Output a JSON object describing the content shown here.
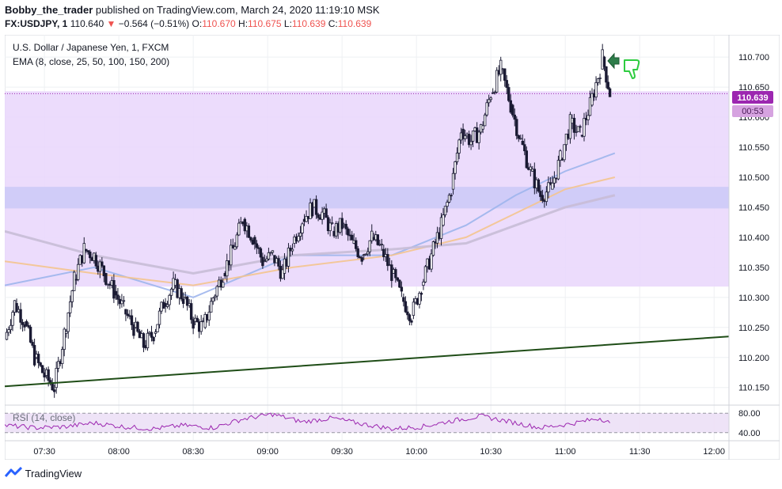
{
  "header": {
    "author": "Bobby_the_trader",
    "published_text": "published on TradingView.com, March 24, 2020 11:19:10 MSK",
    "symbol_line": "FX:USDJPY, 1",
    "last": "110.640",
    "change": "−0.564 (−0.51%)",
    "o_label": "O:",
    "o_value": "110.670",
    "h_label": "H:",
    "h_value": "110.675",
    "l_label": "L:",
    "l_value": "110.639",
    "c_label": "C:",
    "c_value": "110.639"
  },
  "legend": {
    "title": "U.S. Dollar / Japanese Yen, 1, FXCM",
    "ema": "EMA (8, close, 25, 50, 100, 150, 200)",
    "rsi": "RSI (14, close)"
  },
  "price_badge": {
    "price": "110.639",
    "countdown": "00:53",
    "color": "#9c27b0"
  },
  "footer": {
    "brand": "TradingView"
  },
  "colors": {
    "zone_fill": "#e9d6fb",
    "band_fill": "#c7c7f7",
    "candle": "#1a1a33",
    "ema_blue": "#9db5ec",
    "ema_orange": "#f4c48e",
    "ema_gray": "#c8bdd6",
    "trendline": "#1f4d17",
    "rsi_line": "#9c27b0",
    "arrow": "#2e7d4a",
    "thumb": "#2ecc40"
  },
  "chart_data": [
    {
      "type": "line",
      "name": "USDJPY 1m candles",
      "x_ticks": [
        "07:30",
        "08:00",
        "08:30",
        "09:00",
        "09:30",
        "10:00",
        "10:30",
        "11:00",
        "11:30",
        "12:00"
      ],
      "y_ticks": [
        "110.150",
        "110.200",
        "110.250",
        "110.300",
        "110.350",
        "110.400",
        "110.450",
        "110.500",
        "110.550",
        "110.600",
        "110.650",
        "110.700"
      ],
      "ylim": [
        110.122,
        110.737
      ],
      "xlim_minutes": [
        434,
        726
      ],
      "close_points": [
        [
          434,
          110.23
        ],
        [
          438,
          110.29
        ],
        [
          442,
          110.26
        ],
        [
          446,
          110.2
        ],
        [
          450,
          110.17
        ],
        [
          454,
          110.15
        ],
        [
          458,
          110.24
        ],
        [
          462,
          110.33
        ],
        [
          466,
          110.38
        ],
        [
          470,
          110.37
        ],
        [
          474,
          110.34
        ],
        [
          478,
          110.31
        ],
        [
          482,
          110.28
        ],
        [
          486,
          110.25
        ],
        [
          490,
          110.22
        ],
        [
          494,
          110.24
        ],
        [
          498,
          110.29
        ],
        [
          502,
          110.32
        ],
        [
          506,
          110.3
        ],
        [
          510,
          110.26
        ],
        [
          514,
          110.25
        ],
        [
          518,
          110.3
        ],
        [
          522,
          110.34
        ],
        [
          526,
          110.38
        ],
        [
          530,
          110.43
        ],
        [
          534,
          110.4
        ],
        [
          538,
          110.36
        ],
        [
          542,
          110.37
        ],
        [
          546,
          110.34
        ],
        [
          550,
          110.39
        ],
        [
          554,
          110.43
        ],
        [
          558,
          110.45
        ],
        [
          562,
          110.44
        ],
        [
          566,
          110.41
        ],
        [
          570,
          110.42
        ],
        [
          574,
          110.39
        ],
        [
          578,
          110.37
        ],
        [
          582,
          110.4
        ],
        [
          586,
          110.38
        ],
        [
          590,
          110.34
        ],
        [
          594,
          110.3
        ],
        [
          598,
          110.27
        ],
        [
          602,
          110.32
        ],
        [
          606,
          110.37
        ],
        [
          610,
          110.42
        ],
        [
          614,
          110.48
        ],
        [
          618,
          110.58
        ],
        [
          622,
          110.56
        ],
        [
          626,
          110.58
        ],
        [
          630,
          110.64
        ],
        [
          634,
          110.68
        ],
        [
          638,
          110.62
        ],
        [
          642,
          110.56
        ],
        [
          646,
          110.51
        ],
        [
          650,
          110.47
        ],
        [
          654,
          110.48
        ],
        [
          658,
          110.53
        ],
        [
          662,
          110.59
        ],
        [
          666,
          110.57
        ],
        [
          670,
          110.62
        ],
        [
          674,
          110.68
        ],
        [
          675,
          110.7
        ],
        [
          678,
          110.64
        ]
      ],
      "ema_series": [
        {
          "x": [
            434,
            470,
            510,
            550,
            590,
            620,
            640,
            660,
            680
          ],
          "y": [
            110.32,
            110.35,
            110.3,
            110.37,
            110.37,
            110.42,
            110.47,
            110.51,
            110.54
          ]
        },
        {
          "x": [
            434,
            470,
            510,
            550,
            590,
            620,
            640,
            660,
            680
          ],
          "y": [
            110.36,
            110.34,
            110.32,
            110.35,
            110.37,
            110.4,
            110.44,
            110.48,
            110.5
          ]
        },
        {
          "x": [
            434,
            470,
            510,
            550,
            590,
            620,
            640,
            660,
            680
          ],
          "y": [
            110.41,
            110.37,
            110.34,
            110.37,
            110.38,
            110.39,
            110.42,
            110.45,
            110.47
          ]
        }
      ],
      "trendline": [
        [
          434,
          110.152
        ],
        [
          726,
          110.235
        ]
      ],
      "zones": [
        [
          110.318,
          110.643
        ],
        [
          110.448,
          110.484
        ]
      ]
    },
    {
      "type": "line",
      "name": "RSI",
      "y_ticks": [
        "80.00",
        "40.00"
      ],
      "ylim": [
        25,
        95
      ],
      "x": [
        434,
        446,
        458,
        470,
        482,
        494,
        506,
        518,
        530,
        542,
        554,
        566,
        578,
        590,
        602,
        614,
        626,
        638,
        650,
        662,
        674,
        678
      ],
      "values": [
        55,
        50,
        52,
        60,
        52,
        48,
        55,
        50,
        68,
        78,
        62,
        70,
        58,
        48,
        52,
        64,
        74,
        62,
        50,
        58,
        70,
        60
      ]
    }
  ]
}
